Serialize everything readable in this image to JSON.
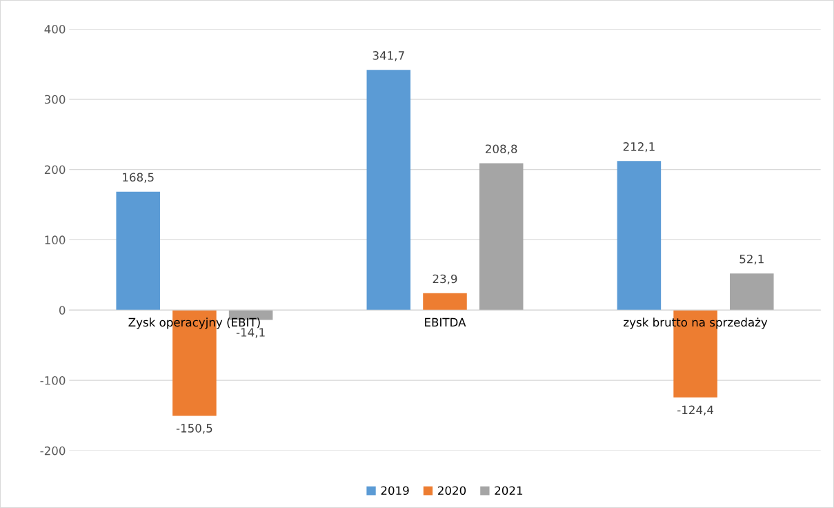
{
  "chart_data": {
    "type": "bar",
    "categories": [
      "Zysk operacyjny (EBIT)",
      "EBITDA",
      "zysk brutto na sprzedaży"
    ],
    "series": [
      {
        "name": "2019",
        "color": "#5b9bd5",
        "values": [
          168.5,
          341.7,
          212.1
        ],
        "value_labels": [
          "168,5",
          "341,7",
          "212,1"
        ]
      },
      {
        "name": "2020",
        "color": "#ed7d31",
        "values": [
          -150.5,
          23.9,
          -124.4
        ],
        "value_labels": [
          "-150,5",
          "23,9",
          "-124,4"
        ]
      },
      {
        "name": "2021",
        "color": "#a5a5a5",
        "values": [
          -14.1,
          208.8,
          52.1
        ],
        "value_labels": [
          "-14,1",
          "208,8",
          "52,1"
        ]
      }
    ],
    "ylim": [
      -200,
      400
    ],
    "yticks": [
      -200,
      -100,
      0,
      100,
      200,
      300,
      400
    ],
    "grid": "y",
    "legend": "bottom"
  }
}
